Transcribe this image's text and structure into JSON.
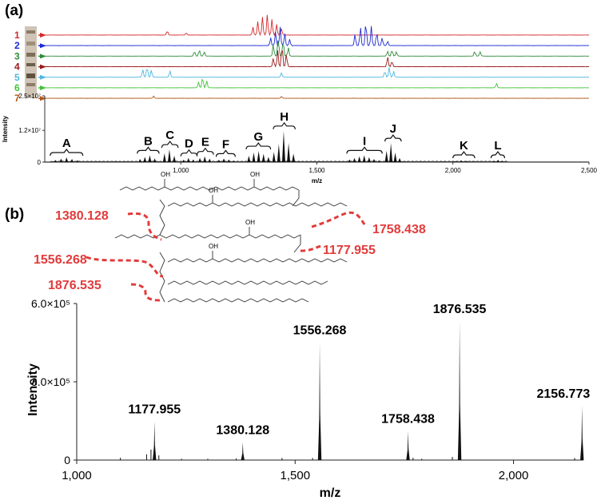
{
  "panel_labels": {
    "a": "(a)",
    "b": "(b)"
  },
  "colors": {
    "lanes": [
      "#d42a2a",
      "#1f2bd4",
      "#2e8b3a",
      "#9a1a1a",
      "#4fb7e0",
      "#44c23a",
      "#b2571a"
    ],
    "annotation": "#e23b3b",
    "spectrum": "#111111"
  },
  "chart_data": [
    {
      "type": "line",
      "title": "",
      "lanes": [
        "1",
        "2",
        "3",
        "4",
        "5",
        "6",
        "7"
      ],
      "peaks": [
        {
          "lane": 0,
          "mz": 1265,
          "h": 0.55
        },
        {
          "lane": 0,
          "mz": 1283,
          "h": 0.95
        },
        {
          "lane": 0,
          "mz": 1300,
          "h": 1.25
        },
        {
          "lane": 0,
          "mz": 1318,
          "h": 1.45
        },
        {
          "lane": 0,
          "mz": 1335,
          "h": 1.1
        },
        {
          "lane": 0,
          "mz": 1352,
          "h": 0.75
        },
        {
          "lane": 0,
          "mz": 1370,
          "h": 0.45
        },
        {
          "lane": 0,
          "mz": 950,
          "h": 0.3
        },
        {
          "lane": 0,
          "mz": 1020,
          "h": 0.15
        },
        {
          "lane": 1,
          "mz": 1330,
          "h": 0.55
        },
        {
          "lane": 1,
          "mz": 1348,
          "h": 0.95
        },
        {
          "lane": 1,
          "mz": 1365,
          "h": 1.3
        },
        {
          "lane": 1,
          "mz": 1382,
          "h": 0.85
        },
        {
          "lane": 1,
          "mz": 1400,
          "h": 0.45
        },
        {
          "lane": 1,
          "mz": 1640,
          "h": 0.8
        },
        {
          "lane": 1,
          "mz": 1660,
          "h": 1.3
        },
        {
          "lane": 1,
          "mz": 1680,
          "h": 1.7
        },
        {
          "lane": 1,
          "mz": 1700,
          "h": 1.35
        },
        {
          "lane": 1,
          "mz": 1720,
          "h": 0.95
        },
        {
          "lane": 1,
          "mz": 1740,
          "h": 0.55
        },
        {
          "lane": 1,
          "mz": 1760,
          "h": 0.3
        },
        {
          "lane": 2,
          "mz": 1050,
          "h": 0.35
        },
        {
          "lane": 2,
          "mz": 1068,
          "h": 0.45
        },
        {
          "lane": 2,
          "mz": 1086,
          "h": 0.3
        },
        {
          "lane": 2,
          "mz": 1340,
          "h": 0.8
        },
        {
          "lane": 2,
          "mz": 1358,
          "h": 1.3
        },
        {
          "lane": 2,
          "mz": 1376,
          "h": 1.1
        },
        {
          "lane": 2,
          "mz": 1395,
          "h": 0.6
        },
        {
          "lane": 2,
          "mz": 1760,
          "h": 0.35
        },
        {
          "lane": 2,
          "mz": 1776,
          "h": 0.45
        },
        {
          "lane": 2,
          "mz": 1792,
          "h": 0.3
        },
        {
          "lane": 2,
          "mz": 2080,
          "h": 0.35
        },
        {
          "lane": 2,
          "mz": 2100,
          "h": 0.3
        },
        {
          "lane": 3,
          "mz": 1340,
          "h": 0.6
        },
        {
          "lane": 3,
          "mz": 1356,
          "h": 1.15
        },
        {
          "lane": 3,
          "mz": 1372,
          "h": 1.5
        },
        {
          "lane": 3,
          "mz": 1388,
          "h": 0.9
        },
        {
          "lane": 3,
          "mz": 1760,
          "h": 0.7
        },
        {
          "lane": 3,
          "mz": 1776,
          "h": 0.4
        },
        {
          "lane": 4,
          "mz": 860,
          "h": 0.55
        },
        {
          "lane": 4,
          "mz": 876,
          "h": 0.75
        },
        {
          "lane": 4,
          "mz": 892,
          "h": 0.5
        },
        {
          "lane": 4,
          "mz": 960,
          "h": 0.45
        },
        {
          "lane": 4,
          "mz": 1370,
          "h": 0.3
        },
        {
          "lane": 4,
          "mz": 1750,
          "h": 0.45
        },
        {
          "lane": 4,
          "mz": 1766,
          "h": 0.7
        },
        {
          "lane": 4,
          "mz": 1782,
          "h": 0.4
        },
        {
          "lane": 5,
          "mz": 1065,
          "h": 0.4
        },
        {
          "lane": 5,
          "mz": 1080,
          "h": 0.75
        },
        {
          "lane": 5,
          "mz": 1095,
          "h": 0.5
        },
        {
          "lane": 5,
          "mz": 2160,
          "h": 0.3
        },
        {
          "lane": 6,
          "mz": 900,
          "h": 0.15
        },
        {
          "lane": 6,
          "mz": 1370,
          "h": 0.12
        }
      ],
      "xlim": [
        500,
        2500
      ]
    },
    {
      "type": "bar",
      "title": "",
      "xlabel": "m/z",
      "ylabel": "Intensity",
      "xlim": [
        500,
        2500
      ],
      "ylim": [
        0,
        25000000
      ],
      "xticks": [
        1000,
        1500,
        2000,
        2500
      ],
      "xtick_labels": [
        "1,000",
        "1,500",
        "2,000",
        "2,500"
      ],
      "ytick_labels": [
        "2.5×10⁷",
        "1.2×10⁷",
        "0"
      ],
      "yticks": [
        25000000,
        12000000,
        0
      ],
      "groups": [
        {
          "label": "A",
          "from": 520,
          "to": 640,
          "mz": [
            540,
            560,
            580,
            600,
            620
          ],
          "values": [
            0.8,
            1.3,
            1.8,
            1.2,
            0.7
          ]
        },
        {
          "label": "B",
          "from": 840,
          "to": 920,
          "mz": [
            850,
            868,
            886,
            904
          ],
          "values": [
            1.2,
            2.0,
            2.6,
            1.4
          ]
        },
        {
          "label": "C",
          "from": 930,
          "to": 990,
          "mz": [
            940,
            958,
            976
          ],
          "values": [
            3.3,
            4.8,
            2.4
          ]
        },
        {
          "label": "D",
          "from": 1000,
          "to": 1060,
          "mz": [
            1010,
            1028,
            1046
          ],
          "values": [
            0.9,
            1.6,
            1.0
          ]
        },
        {
          "label": "E",
          "from": 1060,
          "to": 1120,
          "mz": [
            1070,
            1088,
            1106
          ],
          "values": [
            1.6,
            2.2,
            1.3
          ]
        },
        {
          "label": "F",
          "from": 1130,
          "to": 1200,
          "mz": [
            1140,
            1158,
            1176,
            1194
          ],
          "values": [
            0.9,
            1.4,
            1.0,
            0.6
          ]
        },
        {
          "label": "G",
          "from": 1240,
          "to": 1330,
          "mz": [
            1250,
            1268,
            1286,
            1304,
            1322
          ],
          "values": [
            2.4,
            3.6,
            4.2,
            3.2,
            2.0
          ]
        },
        {
          "label": "H",
          "from": 1340,
          "to": 1420,
          "mz": [
            1342,
            1360,
            1378,
            1396,
            1414
          ],
          "values": [
            3.8,
            6.8,
            11.8,
            7.2,
            3.2
          ]
        },
        {
          "label": "I",
          "from": 1610,
          "to": 1740,
          "mz": [
            1620,
            1638,
            1656,
            1674,
            1692,
            1710,
            1728
          ],
          "values": [
            1.0,
            1.6,
            2.2,
            2.6,
            1.9,
            1.2,
            0.7
          ]
        },
        {
          "label": "J",
          "from": 1750,
          "to": 1810,
          "mz": [
            1756,
            1772,
            1788,
            1804
          ],
          "values": [
            4.3,
            7.2,
            3.6,
            1.6
          ]
        },
        {
          "label": "K",
          "from": 2000,
          "to": 2080,
          "mz": [
            2010,
            2030,
            2050,
            2070
          ],
          "values": [
            0.4,
            0.7,
            0.5,
            0.3
          ]
        },
        {
          "label": "L",
          "from": 2140,
          "to": 2190,
          "mz": [
            2150,
            2166,
            2182
          ],
          "values": [
            0.5,
            0.9,
            0.5
          ]
        }
      ],
      "value_scale": 1000000
    },
    {
      "type": "bar",
      "title": "",
      "xlabel": "m/z",
      "ylabel": "Intensity",
      "xlim": [
        1000,
        2160
      ],
      "ylim": [
        0,
        600000
      ],
      "xticks": [
        1000,
        1500,
        2000
      ],
      "xtick_labels": [
        "1,000",
        "1,500",
        "2,000"
      ],
      "yticks": [
        600000,
        300000,
        0
      ],
      "ytick_labels": [
        "6.0×10⁵",
        "3.0×10⁵",
        "0"
      ],
      "peaks": [
        {
          "mz": 1177.955,
          "value": 148000,
          "label": "1177.955"
        },
        {
          "mz": 1380.128,
          "value": 69000,
          "label": "1380.128"
        },
        {
          "mz": 1556.268,
          "value": 452000,
          "label": "1556.268"
        },
        {
          "mz": 1758.438,
          "value": 112000,
          "label": "1758.438"
        },
        {
          "mz": 1876.535,
          "value": 532000,
          "label": "1876.535"
        },
        {
          "mz": 2156.773,
          "value": 208000,
          "label": "2156.773"
        }
      ],
      "minor_peaks": [
        {
          "mz": 1100,
          "value": 9000
        },
        {
          "mz": 1160,
          "value": 22000
        },
        {
          "mz": 1170,
          "value": 40000
        },
        {
          "mz": 1188,
          "value": 18000
        },
        {
          "mz": 1240,
          "value": 5000
        },
        {
          "mz": 1300,
          "value": 5000
        },
        {
          "mz": 1365,
          "value": 6000
        },
        {
          "mz": 1470,
          "value": 8000
        },
        {
          "mz": 1540,
          "value": 8000
        },
        {
          "mz": 1770,
          "value": 9000
        },
        {
          "mz": 1790,
          "value": 5000
        },
        {
          "mz": 1860,
          "value": 12000
        },
        {
          "mz": 2140,
          "value": 8000
        }
      ]
    }
  ],
  "structure_annotations": [
    "1380.128",
    "1758.438",
    "1556.268",
    "1177.955",
    "1876.535"
  ],
  "oh_label": "OH"
}
